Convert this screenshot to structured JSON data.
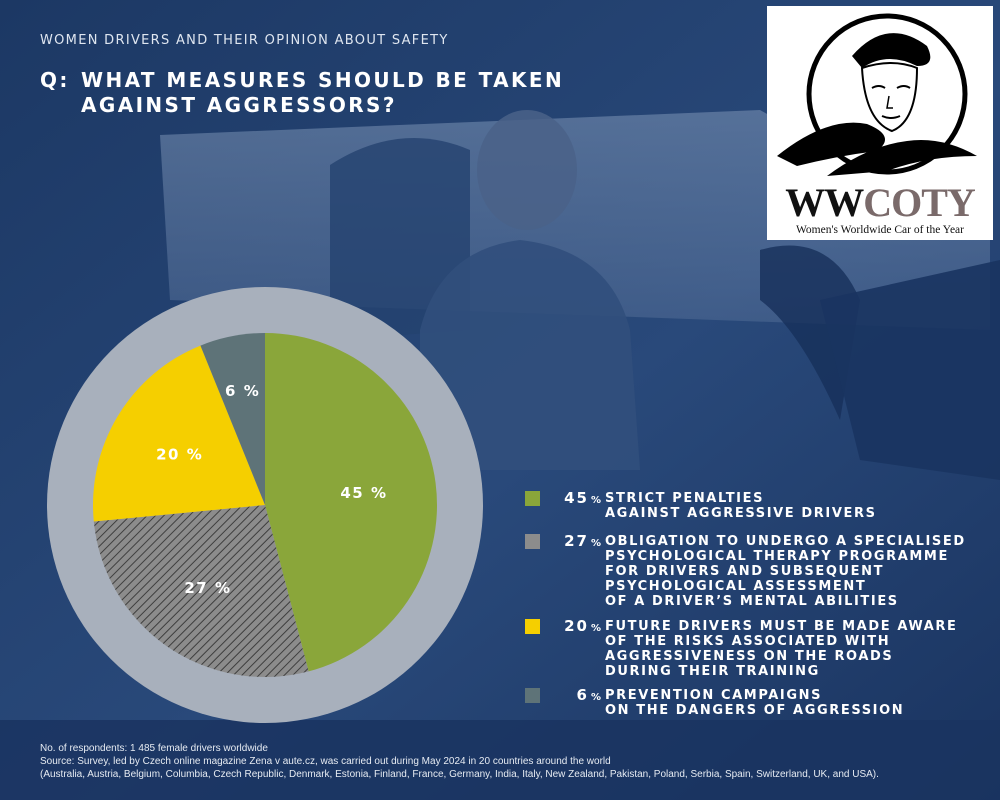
{
  "header": {
    "supertitle": "WOMEN DRIVERS AND THEIR OPINION ABOUT SAFETY",
    "question_prefix": "Q:",
    "question_line1": "WHAT MEASURES SHOULD BE TAKEN",
    "question_line2": "AGAINST AGGRESSORS?"
  },
  "logo": {
    "brand_dark": "WW",
    "brand_light": "COTY",
    "tagline": "Women's Worldwide Car of the Year"
  },
  "chart_data": {
    "type": "pie",
    "title": "",
    "slices": [
      {
        "value": 45,
        "label": "45 %",
        "legend": "STRICT PENALTIES\nAGAINST AGGRESSIVE DRIVERS",
        "color": "#8aa63a",
        "pattern": "solid"
      },
      {
        "value": 27,
        "label": "27 %",
        "legend": "OBLIGATION TO UNDERGO A SPECIALISED\nPSYCHOLOGICAL THERAPY PROGRAMME\nFOR DRIVERS AND SUBSEQUENT\nPSYCHOLOGICAL ASSESSMENT\nOF A DRIVER’S MENTAL ABILITIES",
        "color": "#8c8c8c",
        "pattern": "hatched"
      },
      {
        "value": 20,
        "label": "20 %",
        "legend": "FUTURE DRIVERS MUST BE MADE AWARE\nOF THE RISKS ASSOCIATED WITH\nAGGRESSIVENESS ON THE ROADS\nDURING THEIR TRAINING",
        "color": "#f5cf00",
        "pattern": "solid"
      },
      {
        "value": 6,
        "label": "6 %",
        "legend": "PREVENTION CAMPAIGNS\nON THE DANGERS OF AGGRESSION",
        "color": "#5e7378",
        "pattern": "solid"
      }
    ],
    "legend_placement": "right"
  },
  "legend_pct": [
    "45",
    "27",
    "20",
    "6"
  ],
  "legend_pct_unit": "%",
  "footnote": {
    "line1": "No. of respondents: 1 485 female drivers worldwide",
    "line2": "Source: Survey, led by Czech online magazine Zena v aute.cz, was carried out during May 2024 in 20 countries around the world",
    "line3": "(Australia, Austria, Belgium, Columbia, Czech Republic, Denmark, Estonia, Finland, France, Germany, India, Italy, New Zealand, Pakistan, Poland, Serbia, Spain, Switzerland, UK, and USA)."
  },
  "colors": {
    "background": "#1e3a66",
    "ring": "#a8b0bc"
  }
}
